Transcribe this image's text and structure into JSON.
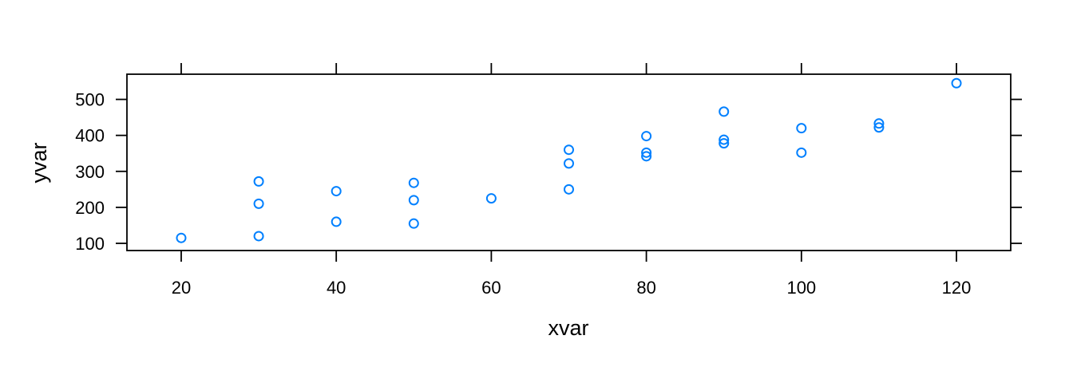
{
  "chart_data": {
    "type": "scatter",
    "title": "",
    "xlabel": "xvar",
    "ylabel": "yvar",
    "xlim": [
      13,
      127
    ],
    "ylim": [
      80,
      570
    ],
    "xticks": [
      20,
      40,
      60,
      80,
      100,
      120
    ],
    "yticks": [
      100,
      200,
      300,
      400,
      500
    ],
    "grid": false,
    "point_color": "#0080ff",
    "marker": "open-circle",
    "points": [
      {
        "x": 20,
        "y": 115
      },
      {
        "x": 30,
        "y": 120
      },
      {
        "x": 30,
        "y": 210
      },
      {
        "x": 30,
        "y": 272
      },
      {
        "x": 40,
        "y": 160
      },
      {
        "x": 40,
        "y": 245
      },
      {
        "x": 50,
        "y": 155
      },
      {
        "x": 50,
        "y": 220
      },
      {
        "x": 50,
        "y": 268
      },
      {
        "x": 60,
        "y": 225
      },
      {
        "x": 70,
        "y": 250
      },
      {
        "x": 70,
        "y": 322
      },
      {
        "x": 70,
        "y": 360
      },
      {
        "x": 80,
        "y": 342
      },
      {
        "x": 80,
        "y": 352
      },
      {
        "x": 80,
        "y": 398
      },
      {
        "x": 90,
        "y": 378
      },
      {
        "x": 90,
        "y": 388
      },
      {
        "x": 90,
        "y": 466
      },
      {
        "x": 100,
        "y": 352
      },
      {
        "x": 100,
        "y": 420
      },
      {
        "x": 110,
        "y": 422
      },
      {
        "x": 110,
        "y": 433
      },
      {
        "x": 120,
        "y": 545
      }
    ]
  }
}
